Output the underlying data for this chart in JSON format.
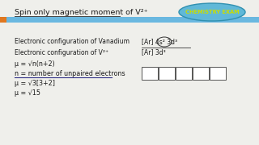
{
  "bg_color": "#efefeb",
  "title_text": "Spin only magnetic moment of V²⁺",
  "title_fontsize": 6.8,
  "stripe_color": "#6ab8e0",
  "orange_stripe_color": "#e07820",
  "badge_text": "CHEMISTRY EXAM",
  "badge_color": "#60b8d8",
  "badge_text_color": "#ccdd00",
  "line1": "Electronic configuration of Vanadium",
  "line1_right": "[Ar] 4s² 3d³",
  "line2": "Electronic configuration of V²⁺",
  "line2_right": "[Ar] 3d³",
  "formula1": "μ = √n(n+2)",
  "formula2": "n = number of unpaired electrons",
  "formula3": "μ = √3[3+2]",
  "formula4": "μ = √15",
  "fontsize_body": 5.5,
  "fontsize_formula": 5.8
}
